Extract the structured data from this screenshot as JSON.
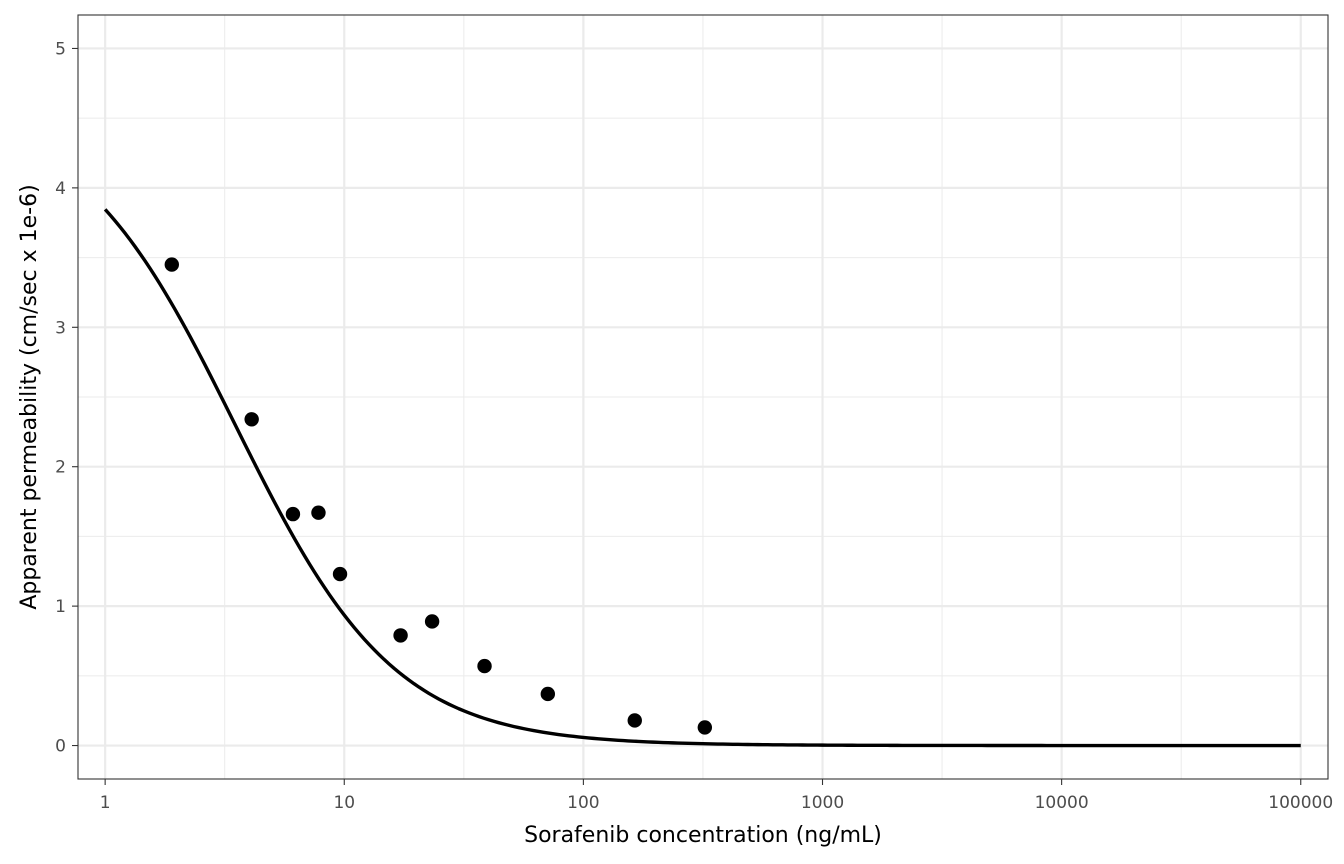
{
  "chart_data": {
    "type": "scatter",
    "title": "",
    "xlabel": "Sorafenib concentration (ng/mL)",
    "ylabel": "Apparent permeability (cm/sec x 1e-6)",
    "x_scale": "log10",
    "xlim": [
      0.77,
      130000
    ],
    "ylim": [
      -0.24,
      5.24
    ],
    "x_ticks": [
      1,
      10,
      100,
      1000,
      10000,
      100000
    ],
    "x_tick_labels": [
      "1",
      "10",
      "100",
      "1000",
      "10000",
      "100000"
    ],
    "y_ticks": [
      0,
      1,
      2,
      3,
      4,
      5
    ],
    "y_tick_labels": [
      "0",
      "1",
      "2",
      "3",
      "4",
      "5"
    ],
    "grid": true,
    "series": [
      {
        "type": "scatter",
        "color": "#000000",
        "points": [
          {
            "x": 1.9,
            "y": 3.45
          },
          {
            "x": 4.1,
            "y": 2.34
          },
          {
            "x": 6.1,
            "y": 1.66
          },
          {
            "x": 7.8,
            "y": 1.67
          },
          {
            "x": 9.6,
            "y": 1.23
          },
          {
            "x": 17.2,
            "y": 0.79
          },
          {
            "x": 23.3,
            "y": 0.89
          },
          {
            "x": 38.6,
            "y": 0.57
          },
          {
            "x": 71.0,
            "y": 0.37
          },
          {
            "x": 164,
            "y": 0.18
          },
          {
            "x": 322,
            "y": 0.13
          }
        ]
      },
      {
        "type": "line",
        "color": "#000000",
        "fit": {
          "model": "inhibition",
          "top": 4.6,
          "ic50": 3.5,
          "hill": 1.3
        },
        "x_range": [
          1,
          100000
        ]
      }
    ]
  }
}
